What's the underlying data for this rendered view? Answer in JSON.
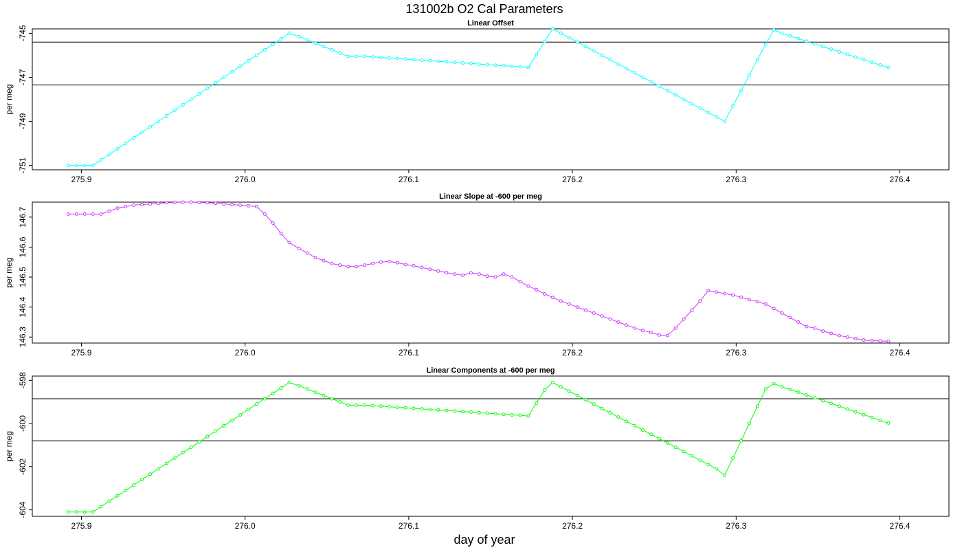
{
  "title": "131002b   O2 Cal Parameters",
  "xlabel": "day of year",
  "chart_data": [
    {
      "type": "line",
      "title": "Linear Offset",
      "ylabel": "per meg",
      "color": "#00ffff",
      "xlim": [
        275.87,
        276.43
      ],
      "ylim": [
        -751.2,
        -744.8
      ],
      "xticks": [
        "275.9",
        "276.0",
        "276.1",
        "276.2",
        "276.3",
        "276.4"
      ],
      "yticks": [
        "-745",
        "-747",
        "-749",
        "-751"
      ],
      "hlines": [
        -745.4,
        -747.35
      ],
      "x": [
        275.892,
        275.897,
        275.902,
        275.907,
        275.912,
        275.917,
        275.922,
        275.927,
        275.932,
        275.937,
        275.942,
        275.947,
        275.952,
        275.957,
        275.962,
        275.967,
        275.972,
        275.977,
        275.982,
        275.987,
        275.992,
        275.997,
        276.002,
        276.007,
        276.012,
        276.017,
        276.022,
        276.027,
        276.033,
        276.038,
        276.043,
        276.048,
        276.053,
        276.058,
        276.063,
        276.068,
        276.073,
        276.078,
        276.083,
        276.088,
        276.093,
        276.098,
        276.103,
        276.108,
        276.113,
        276.118,
        276.123,
        276.128,
        276.133,
        276.138,
        276.143,
        276.148,
        276.153,
        276.158,
        276.163,
        276.168,
        276.173,
        276.178,
        276.183,
        276.188,
        276.193,
        276.198,
        276.203,
        276.208,
        276.213,
        276.218,
        276.223,
        276.228,
        276.233,
        276.238,
        276.243,
        276.248,
        276.253,
        276.258,
        276.263,
        276.268,
        276.273,
        276.278,
        276.283,
        276.288,
        276.293,
        276.298,
        276.303,
        276.308,
        276.313,
        276.318,
        276.323,
        276.328,
        276.333,
        276.338,
        276.343,
        276.348,
        276.353,
        276.358,
        276.363,
        276.368,
        276.373,
        276.378,
        276.383,
        276.388,
        276.393
      ],
      "y": [
        -751.0,
        -751.0,
        -751.0,
        -751.0,
        -750.75,
        -750.5,
        -750.25,
        -750.0,
        -749.75,
        -749.5,
        -749.25,
        -749.0,
        -748.75,
        -748.5,
        -748.25,
        -748.0,
        -747.75,
        -747.5,
        -747.25,
        -747.0,
        -746.75,
        -746.5,
        -746.25,
        -746.0,
        -745.75,
        -745.5,
        -745.25,
        -745.0,
        -745.15,
        -745.3,
        -745.45,
        -745.6,
        -745.75,
        -745.9,
        -746.05,
        -746.05,
        -746.05,
        -746.07,
        -746.1,
        -746.12,
        -746.15,
        -746.17,
        -746.2,
        -746.22,
        -746.25,
        -746.27,
        -746.3,
        -746.32,
        -746.35,
        -746.37,
        -746.4,
        -746.42,
        -746.45,
        -746.47,
        -746.5,
        -746.52,
        -746.55,
        -745.96,
        -745.37,
        -744.8,
        -745.0,
        -745.2,
        -745.4,
        -745.6,
        -745.8,
        -746.0,
        -746.2,
        -746.4,
        -746.6,
        -746.8,
        -747.0,
        -747.2,
        -747.4,
        -747.6,
        -747.8,
        -748.0,
        -748.2,
        -748.4,
        -748.6,
        -748.8,
        -749.0,
        -748.3,
        -747.6,
        -746.9,
        -746.2,
        -745.5,
        -744.85,
        -745.0,
        -745.12,
        -745.24,
        -745.36,
        -745.48,
        -745.6,
        -745.72,
        -745.84,
        -745.96,
        -746.08,
        -746.2,
        -746.32,
        -746.44,
        -746.56
      ]
    },
    {
      "type": "line",
      "title": "Linear Slope at -600 per meg",
      "ylabel": "per meg",
      "color": "#cc33ff",
      "xlim": [
        275.87,
        276.43
      ],
      "ylim": [
        146.28,
        146.75
      ],
      "xticks": [
        "275.9",
        "276.0",
        "276.1",
        "276.2",
        "276.3",
        "276.4"
      ],
      "yticks": [
        "146.3",
        "146.4",
        "146.5",
        "146.6",
        "146.7"
      ],
      "hlines": [],
      "x": [
        275.892,
        275.897,
        275.902,
        275.907,
        275.912,
        275.917,
        275.922,
        275.927,
        275.932,
        275.937,
        275.942,
        275.947,
        275.952,
        275.957,
        275.962,
        275.967,
        275.972,
        275.977,
        275.982,
        275.987,
        275.992,
        275.997,
        276.002,
        276.007,
        276.012,
        276.017,
        276.022,
        276.027,
        276.033,
        276.038,
        276.043,
        276.048,
        276.053,
        276.058,
        276.063,
        276.068,
        276.073,
        276.078,
        276.083,
        276.088,
        276.093,
        276.098,
        276.103,
        276.108,
        276.113,
        276.118,
        276.123,
        276.128,
        276.133,
        276.138,
        276.143,
        276.148,
        276.153,
        276.158,
        276.163,
        276.168,
        276.173,
        276.178,
        276.183,
        276.188,
        276.193,
        276.198,
        276.203,
        276.208,
        276.213,
        276.218,
        276.223,
        276.228,
        276.233,
        276.238,
        276.243,
        276.248,
        276.253,
        276.258,
        276.263,
        276.268,
        276.273,
        276.278,
        276.283,
        276.288,
        276.293,
        276.298,
        276.303,
        276.308,
        276.313,
        276.318,
        276.323,
        276.328,
        276.333,
        276.338,
        276.343,
        276.348,
        276.353,
        276.358,
        276.363,
        276.368,
        276.373,
        276.378,
        276.383,
        276.388,
        276.393
      ],
      "y": [
        146.71,
        146.71,
        146.71,
        146.71,
        146.71,
        146.72,
        146.73,
        146.735,
        146.74,
        146.742,
        146.744,
        146.746,
        146.748,
        146.749,
        146.75,
        146.75,
        146.749,
        146.748,
        146.746,
        146.744,
        146.742,
        146.74,
        146.738,
        146.735,
        146.71,
        146.68,
        146.645,
        146.615,
        146.595,
        146.58,
        146.565,
        146.555,
        146.545,
        146.54,
        146.535,
        146.535,
        146.54,
        146.545,
        146.55,
        146.552,
        146.548,
        146.542,
        146.538,
        146.532,
        146.526,
        146.52,
        146.515,
        146.51,
        146.506,
        146.514,
        146.51,
        146.503,
        146.5,
        146.51,
        146.5,
        146.485,
        146.47,
        146.458,
        146.444,
        146.432,
        146.42,
        146.41,
        146.4,
        146.39,
        146.38,
        146.37,
        146.36,
        146.35,
        146.34,
        146.33,
        146.322,
        146.315,
        146.307,
        146.305,
        146.33,
        146.36,
        146.39,
        146.42,
        146.455,
        146.45,
        146.445,
        146.44,
        146.433,
        146.425,
        146.418,
        146.41,
        146.395,
        146.38,
        146.365,
        146.35,
        146.335,
        146.33,
        146.32,
        146.312,
        146.305,
        146.3,
        146.295,
        146.29,
        146.288,
        146.287,
        146.286
      ]
    },
    {
      "type": "line",
      "title": "Linear Components at -600 per meg",
      "ylabel": "per meg",
      "color": "#00ff00",
      "xlim": [
        275.87,
        276.43
      ],
      "ylim": [
        -604.3,
        -597.8
      ],
      "xticks": [
        "275.9",
        "276.0",
        "276.1",
        "276.2",
        "276.3",
        "276.4"
      ],
      "yticks": [
        "-598",
        "-600",
        "-602",
        "-604"
      ],
      "hlines": [
        -598.85,
        -600.8
      ],
      "x": [
        275.892,
        275.897,
        275.902,
        275.907,
        275.912,
        275.917,
        275.922,
        275.927,
        275.932,
        275.937,
        275.942,
        275.947,
        275.952,
        275.957,
        275.962,
        275.967,
        275.972,
        275.977,
        275.982,
        275.987,
        275.992,
        275.997,
        276.002,
        276.007,
        276.012,
        276.017,
        276.022,
        276.027,
        276.033,
        276.038,
        276.043,
        276.048,
        276.053,
        276.058,
        276.063,
        276.068,
        276.073,
        276.078,
        276.083,
        276.088,
        276.093,
        276.098,
        276.103,
        276.108,
        276.113,
        276.118,
        276.123,
        276.128,
        276.133,
        276.138,
        276.143,
        276.148,
        276.153,
        276.158,
        276.163,
        276.168,
        276.173,
        276.178,
        276.183,
        276.188,
        276.193,
        276.198,
        276.203,
        276.208,
        276.213,
        276.218,
        276.223,
        276.228,
        276.233,
        276.238,
        276.243,
        276.248,
        276.253,
        276.258,
        276.263,
        276.268,
        276.273,
        276.278,
        276.283,
        276.288,
        276.293,
        276.298,
        276.303,
        276.308,
        276.313,
        276.318,
        276.323,
        276.328,
        276.333,
        276.338,
        276.343,
        276.348,
        276.353,
        276.358,
        276.363,
        276.368,
        276.373,
        276.378,
        276.383,
        276.388,
        276.393
      ],
      "y": [
        -604.1,
        -604.1,
        -604.1,
        -604.1,
        -603.85,
        -603.6,
        -603.35,
        -603.1,
        -602.85,
        -602.6,
        -602.35,
        -602.1,
        -601.85,
        -601.6,
        -601.35,
        -601.1,
        -600.85,
        -600.6,
        -600.35,
        -600.1,
        -599.85,
        -599.6,
        -599.35,
        -599.1,
        -598.85,
        -598.6,
        -598.35,
        -598.1,
        -598.25,
        -598.4,
        -598.55,
        -598.7,
        -598.85,
        -599.0,
        -599.15,
        -599.15,
        -599.15,
        -599.17,
        -599.2,
        -599.22,
        -599.25,
        -599.27,
        -599.3,
        -599.32,
        -599.35,
        -599.37,
        -599.4,
        -599.42,
        -599.45,
        -599.47,
        -599.5,
        -599.52,
        -599.55,
        -599.57,
        -599.6,
        -599.62,
        -599.65,
        -599.05,
        -598.45,
        -598.1,
        -598.3,
        -598.5,
        -598.7,
        -598.9,
        -599.1,
        -599.3,
        -599.5,
        -599.7,
        -599.9,
        -600.1,
        -600.3,
        -600.5,
        -600.7,
        -600.9,
        -601.1,
        -601.3,
        -601.5,
        -601.7,
        -601.9,
        -602.1,
        -602.4,
        -601.6,
        -600.8,
        -600.0,
        -599.2,
        -598.4,
        -598.15,
        -598.3,
        -598.42,
        -598.55,
        -598.68,
        -598.81,
        -598.94,
        -599.07,
        -599.2,
        -599.33,
        -599.46,
        -599.59,
        -599.72,
        -599.85,
        -599.98
      ]
    }
  ]
}
